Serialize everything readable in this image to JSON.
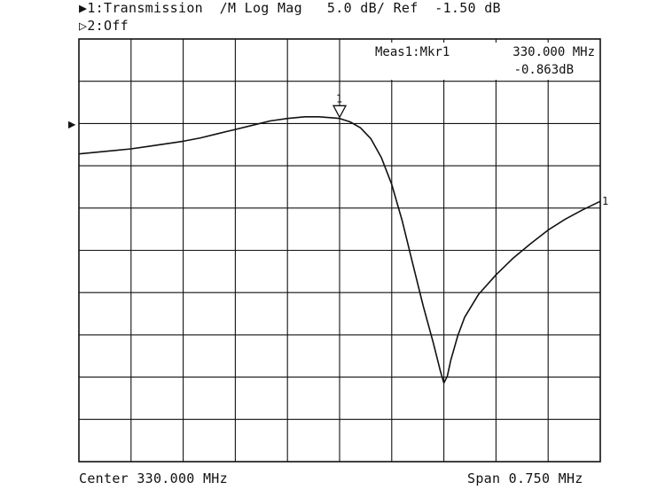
{
  "header": {
    "channel1_marker": "▶",
    "channel1_label": "1:Transmission  /M Log Mag   5.0 dB/ Ref  -1.50 dB",
    "channel2_marker": "▷",
    "channel2_label": "2:Off"
  },
  "footer": {
    "center": "Center 330.000 MHz",
    "span": "Span 0.750 MHz"
  },
  "chart_data": {
    "type": "line",
    "format": "Log Mag",
    "scale_db_per_div": 5.0,
    "reference_level_db": -1.5,
    "reference_division": 8,
    "x_divisions": 10,
    "y_divisions": 10,
    "grid": true,
    "x": {
      "unit": "MHz",
      "center": 330.0,
      "span": 0.75,
      "range": [
        329.625,
        330.375
      ]
    },
    "y": {
      "unit": "dB",
      "range": [
        -41.5,
        8.5
      ]
    },
    "reference_arrow_label": "▶",
    "trace_end_label": "1",
    "series": [
      {
        "points": [
          [
            329.625,
            -5.1
          ],
          [
            329.65,
            -4.9
          ],
          [
            329.675,
            -4.7
          ],
          [
            329.7,
            -4.5
          ],
          [
            329.725,
            -4.2
          ],
          [
            329.75,
            -3.9
          ],
          [
            329.775,
            -3.6
          ],
          [
            329.8,
            -3.2
          ],
          [
            329.825,
            -2.7
          ],
          [
            329.85,
            -2.2
          ],
          [
            329.875,
            -1.7
          ],
          [
            329.9,
            -1.2
          ],
          [
            329.925,
            -0.9
          ],
          [
            329.95,
            -0.7
          ],
          [
            329.97,
            -0.7
          ],
          [
            329.985,
            -0.8
          ],
          [
            330.0,
            -0.9
          ],
          [
            330.015,
            -1.3
          ],
          [
            330.03,
            -2.0
          ],
          [
            330.045,
            -3.3
          ],
          [
            330.06,
            -5.5
          ],
          [
            330.075,
            -8.7
          ],
          [
            330.09,
            -13.0
          ],
          [
            330.105,
            -18.0
          ],
          [
            330.12,
            -23.0
          ],
          [
            330.135,
            -27.5
          ],
          [
            330.145,
            -30.8
          ],
          [
            330.15,
            -32.2
          ],
          [
            330.155,
            -31.4
          ],
          [
            330.16,
            -29.5
          ],
          [
            330.17,
            -26.6
          ],
          [
            330.18,
            -24.4
          ],
          [
            330.2,
            -21.7
          ],
          [
            330.225,
            -19.4
          ],
          [
            330.25,
            -17.4
          ],
          [
            330.275,
            -15.7
          ],
          [
            330.3,
            -14.1
          ],
          [
            330.325,
            -12.8
          ],
          [
            330.35,
            -11.7
          ],
          [
            330.375,
            -10.7
          ]
        ]
      }
    ],
    "marker": {
      "label": "1",
      "x": 330.0,
      "y": -0.863,
      "readout_title": "Meas1:Mkr1",
      "readout_freq": "330.000 MHz",
      "readout_value": "-0.863dB"
    }
  }
}
